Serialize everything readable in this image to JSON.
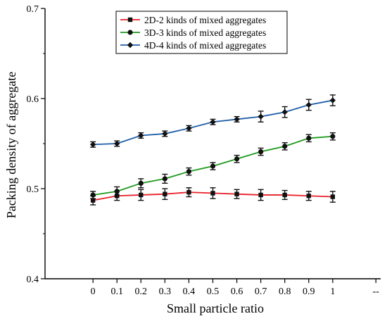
{
  "chart_data": {
    "type": "line",
    "title": "",
    "xlabel": "Small particle ratio",
    "ylabel": "Packing density of aggregate",
    "x": [
      0,
      0.1,
      0.2,
      0.3,
      0.4,
      0.5,
      0.6,
      0.7,
      0.8,
      0.9,
      1
    ],
    "x_tick_labels": [
      "0",
      "0.1",
      "0.2",
      "0.3",
      "0.4",
      "0.5",
      "0.6",
      "0.7",
      "0.8",
      "0.9",
      "1",
      "--"
    ],
    "y_ticks": [
      0.4,
      0.5,
      0.6,
      0.7
    ],
    "y_tick_labels": [
      "0.4",
      "0.5",
      "0.6",
      "0.7"
    ],
    "xlim": [
      -0.2,
      1.2
    ],
    "ylim": [
      0.4,
      0.7
    ],
    "grid": false,
    "legend_position": "top-center",
    "series": [
      {
        "name": "2D-2 kinds of mixed aggregates",
        "color": "#e8202a",
        "marker": "square",
        "values": [
          0.487,
          0.492,
          0.493,
          0.494,
          0.496,
          0.495,
          0.494,
          0.493,
          0.493,
          0.492,
          0.491
        ],
        "errors": [
          0.005,
          0.005,
          0.006,
          0.006,
          0.005,
          0.006,
          0.005,
          0.006,
          0.005,
          0.005,
          0.006
        ]
      },
      {
        "name": "3D-3 kinds of mixed aggregates",
        "color": "#1e9a1e",
        "marker": "circle",
        "values": [
          0.493,
          0.497,
          0.506,
          0.511,
          0.519,
          0.525,
          0.533,
          0.541,
          0.547,
          0.556,
          0.558
        ],
        "errors": [
          0.004,
          0.005,
          0.005,
          0.005,
          0.004,
          0.004,
          0.004,
          0.004,
          0.004,
          0.004,
          0.004
        ]
      },
      {
        "name": "4D-4 kinds of mixed aggregates",
        "color": "#1f5fa8",
        "marker": "diamond",
        "values": [
          0.549,
          0.55,
          0.559,
          0.561,
          0.567,
          0.574,
          0.577,
          0.58,
          0.585,
          0.593,
          0.598
        ],
        "errors": [
          0.003,
          0.003,
          0.003,
          0.003,
          0.003,
          0.003,
          0.003,
          0.006,
          0.006,
          0.006,
          0.006
        ]
      }
    ]
  }
}
